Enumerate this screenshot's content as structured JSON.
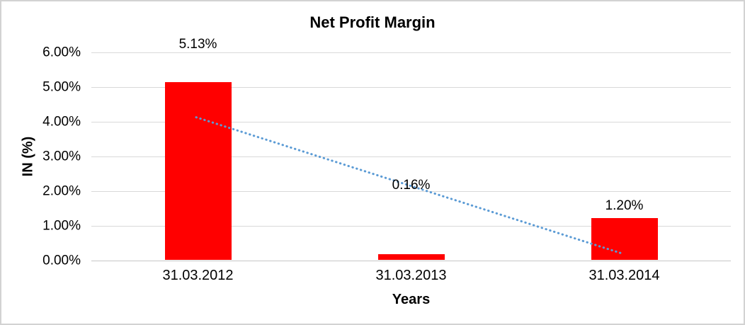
{
  "chart_data": {
    "type": "bar",
    "title": "Net Profit Margin",
    "xlabel": "Years",
    "ylabel": "IN (%)",
    "categories": [
      "31.03.2012",
      "31.03.2013",
      "31.03.2014"
    ],
    "values": [
      5.13,
      0.16,
      1.2
    ],
    "data_labels": [
      "5.13%",
      "0.16%",
      "1.20%"
    ],
    "data_label_y_values": [
      6.22,
      2.16,
      1.57
    ],
    "y_ticks": [
      "0.00%",
      "1.00%",
      "2.00%",
      "3.00%",
      "4.00%",
      "5.00%",
      "6.00%"
    ],
    "ylim": [
      0,
      6
    ],
    "y_step": 1,
    "grid": true,
    "legend": "none",
    "bar_color": "#ff0000",
    "gridline_color": "#d9d9d9",
    "trendline": {
      "style": "dotted",
      "color": "#5b9bd5",
      "start_value": 4.13,
      "end_value": 0.2
    }
  }
}
